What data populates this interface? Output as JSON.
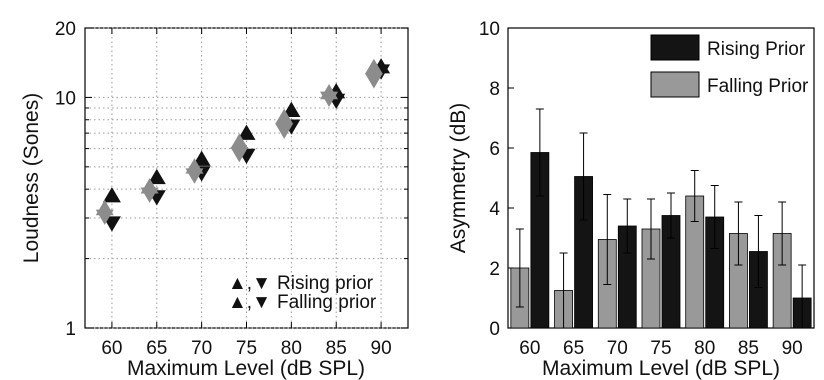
{
  "colors": {
    "rising": "#111111",
    "falling": "#8c8c8c",
    "rising_fill": "#141414",
    "falling_fill": "#999999",
    "falling_text": "#8a8a8a",
    "grid": "#9a9a9a"
  },
  "chart_data": [
    {
      "type": "scatter",
      "xlabel": "Maximum Level (dB SPL)",
      "ylabel": "Loudness (Sones)",
      "yscale": "log",
      "xlim": [
        57,
        93
      ],
      "ylim": [
        1,
        20
      ],
      "x_ticks": [
        60,
        65,
        70,
        75,
        80,
        85,
        90
      ],
      "y_ticks": [
        1,
        10,
        20
      ],
      "grid": "dotted",
      "legend_position": "bottom-right",
      "legend": {
        "rising_markers": "▲,▼",
        "rising_label": "Rising prior",
        "falling_markers": "▲,▼",
        "falling_label": "Falling prior"
      },
      "series": [
        {
          "name": "Rising prior",
          "marker": "up",
          "x": [
            60,
            65,
            70,
            75,
            80,
            85,
            90
          ],
          "y": [
            3.75,
            4.5,
            5.4,
            7.0,
            8.8,
            10.6,
            13.6
          ]
        },
        {
          "name": "Rising prior",
          "marker": "down",
          "x": [
            60,
            65,
            70,
            75,
            80,
            85,
            90
          ],
          "y": [
            2.85,
            3.7,
            4.7,
            5.6,
            7.5,
            9.7,
            13.0
          ]
        },
        {
          "name": "Falling prior",
          "marker": "up",
          "x": [
            59.2,
            64.2,
            69.2,
            74.2,
            79.2,
            84.2,
            89.2
          ],
          "y": [
            3.3,
            4.1,
            5.0,
            6.4,
            8.2,
            10.5,
            13.5
          ]
        },
        {
          "name": "Falling prior",
          "marker": "down",
          "x": [
            59.2,
            64.2,
            69.2,
            74.2,
            79.2,
            84.2,
            89.2
          ],
          "y": [
            3.05,
            3.8,
            4.6,
            5.7,
            7.2,
            9.9,
            11.9
          ]
        }
      ]
    },
    {
      "type": "bar",
      "xlabel": "Maximum Level (dB SPL)",
      "ylabel": "Asymmetry (dB)",
      "ylim": [
        0,
        10
      ],
      "y_ticks": [
        0,
        2,
        4,
        6,
        8,
        10
      ],
      "categories": [
        "60",
        "65",
        "70",
        "75",
        "80",
        "85",
        "90"
      ],
      "legend_position": "top-right",
      "series": [
        {
          "name": "Falling Prior",
          "values": [
            2.0,
            1.25,
            2.95,
            3.3,
            4.4,
            3.15,
            3.15
          ],
          "error": [
            1.3,
            1.25,
            1.5,
            1.0,
            0.85,
            1.05,
            1.05
          ]
        },
        {
          "name": "Rising Prior",
          "values": [
            5.85,
            5.05,
            3.4,
            3.75,
            3.7,
            2.55,
            1.0
          ],
          "error": [
            1.45,
            1.45,
            0.9,
            0.75,
            1.05,
            1.2,
            1.1
          ]
        }
      ],
      "legend": {
        "rising_label": "Rising Prior",
        "falling_label": "Falling Prior"
      }
    }
  ]
}
